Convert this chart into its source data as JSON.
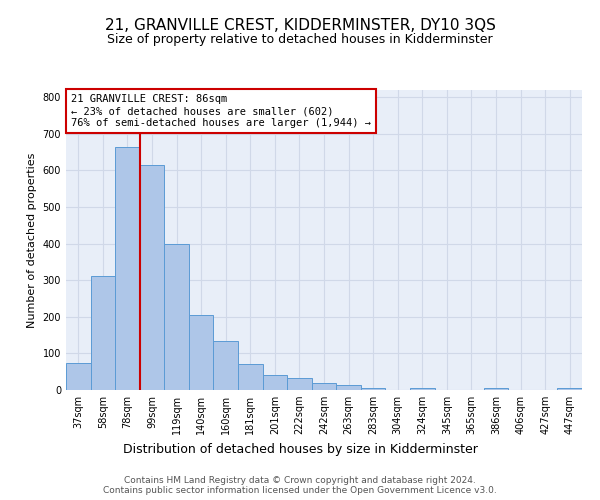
{
  "title": "21, GRANVILLE CREST, KIDDERMINSTER, DY10 3QS",
  "subtitle": "Size of property relative to detached houses in Kidderminster",
  "xlabel": "Distribution of detached houses by size in Kidderminster",
  "ylabel": "Number of detached properties",
  "footer_line1": "Contains HM Land Registry data © Crown copyright and database right 2024.",
  "footer_line2": "Contains public sector information licensed under the Open Government Licence v3.0.",
  "bin_labels": [
    "37sqm",
    "58sqm",
    "78sqm",
    "99sqm",
    "119sqm",
    "140sqm",
    "160sqm",
    "181sqm",
    "201sqm",
    "222sqm",
    "242sqm",
    "263sqm",
    "283sqm",
    "304sqm",
    "324sqm",
    "345sqm",
    "365sqm",
    "386sqm",
    "406sqm",
    "427sqm",
    "447sqm"
  ],
  "bar_heights": [
    75,
    312,
    665,
    615,
    400,
    205,
    135,
    70,
    40,
    33,
    18,
    13,
    5,
    0,
    6,
    0,
    0,
    5,
    0,
    0,
    5
  ],
  "bar_color": "#aec6e8",
  "bar_edge_color": "#5b9bd5",
  "red_line_x": 2.5,
  "subject_label": "21 GRANVILLE CREST: 86sqm",
  "annotation_line1": "← 23% of detached houses are smaller (602)",
  "annotation_line2": "76% of semi-detached houses are larger (1,944) →",
  "annotation_box_color": "#ffffff",
  "annotation_box_edge_color": "#cc0000",
  "red_line_color": "#cc0000",
  "ylim": [
    0,
    820
  ],
  "yticks": [
    0,
    100,
    200,
    300,
    400,
    500,
    600,
    700,
    800
  ],
  "grid_color": "#d0d8e8",
  "bg_color": "#e8eef8",
  "title_fontsize": 11,
  "subtitle_fontsize": 9,
  "ylabel_fontsize": 8,
  "xlabel_fontsize": 9,
  "tick_fontsize": 7,
  "annotation_fontsize": 7.5,
  "footer_fontsize": 6.5
}
